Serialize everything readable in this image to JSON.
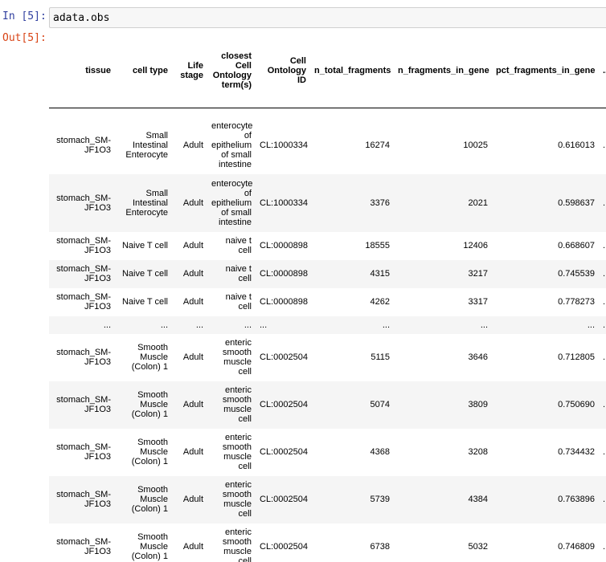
{
  "notebook": {
    "in_prompt": "In [5]:",
    "out_prompt": "Out[5]:",
    "code": "adata.obs"
  },
  "table": {
    "headers": [
      "tissue",
      "cell type",
      "Life stage",
      "closest Cell Ontology term(s)",
      "Cell Ontology ID",
      "n_total_fragments",
      "n_fragments_in_gene",
      "pct_fragments_in_gene",
      "..."
    ],
    "rows": [
      [
        "stomach_SM-JF1O3",
        "Small Intestinal Enterocyte",
        "Adult",
        "enterocyte of epithelium of small intestine",
        "CL:1000334",
        "16274",
        "10025",
        "0.616013",
        "..."
      ],
      [
        "stomach_SM-JF1O3",
        "Small Intestinal Enterocyte",
        "Adult",
        "enterocyte of epithelium of small intestine",
        "CL:1000334",
        "3376",
        "2021",
        "0.598637",
        "..."
      ],
      [
        "stomach_SM-JF1O3",
        "Naive T cell",
        "Adult",
        "naive t cell",
        "CL:0000898",
        "18555",
        "12406",
        "0.668607",
        "..."
      ],
      [
        "stomach_SM-JF1O3",
        "Naive T cell",
        "Adult",
        "naive t cell",
        "CL:0000898",
        "4315",
        "3217",
        "0.745539",
        "..."
      ],
      [
        "stomach_SM-JF1O3",
        "Naive T cell",
        "Adult",
        "naive t cell",
        "CL:0000898",
        "4262",
        "3317",
        "0.778273",
        "..."
      ],
      [
        "...",
        "...",
        "...",
        "...",
        "...",
        "...",
        "...",
        "...",
        "..."
      ],
      [
        "stomach_SM-JF1O3",
        "Smooth Muscle (Colon) 1",
        "Adult",
        "enteric smooth muscle cell",
        "CL:0002504",
        "5115",
        "3646",
        "0.712805",
        "..."
      ],
      [
        "stomach_SM-JF1O3",
        "Smooth Muscle (Colon) 1",
        "Adult",
        "enteric smooth muscle cell",
        "CL:0002504",
        "5074",
        "3809",
        "0.750690",
        "..."
      ],
      [
        "stomach_SM-JF1O3",
        "Smooth Muscle (Colon) 1",
        "Adult",
        "enteric smooth muscle cell",
        "CL:0002504",
        "4368",
        "3208",
        "0.734432",
        "..."
      ],
      [
        "stomach_SM-JF1O3",
        "Smooth Muscle (Colon) 1",
        "Adult",
        "enteric smooth muscle cell",
        "CL:0002504",
        "5739",
        "4384",
        "0.763896",
        "..."
      ],
      [
        "stomach_SM-JF1O3",
        "Smooth Muscle (Colon) 1",
        "Adult",
        "enteric smooth muscle cell",
        "CL:0002504",
        "6738",
        "5032",
        "0.746809",
        "..."
      ]
    ]
  }
}
